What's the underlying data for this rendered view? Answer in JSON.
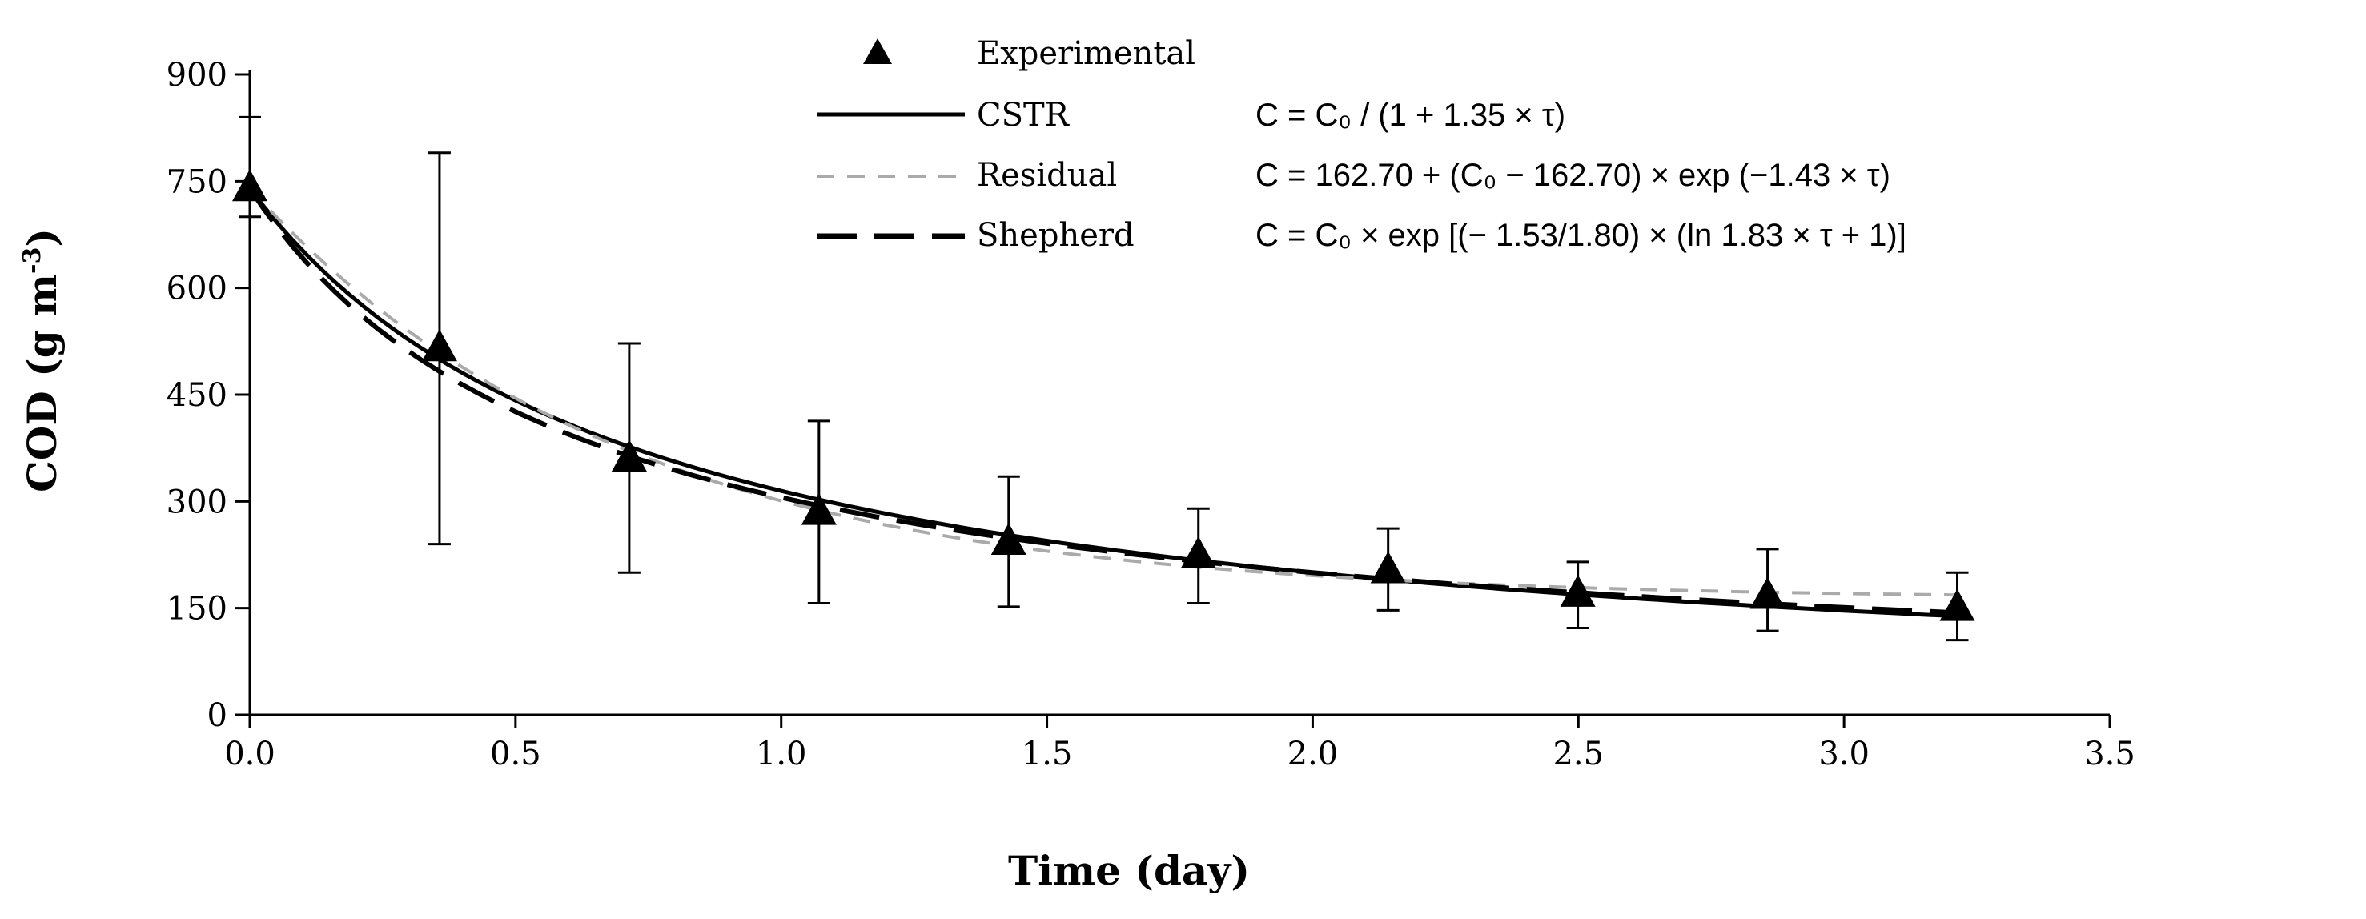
{
  "chart_data": {
    "type": "line",
    "title": "",
    "xlabel": "Time (day)",
    "ylabel": {
      "main": "COD (g m",
      "sup": "-3",
      "close": ")"
    },
    "xlim": [
      0,
      3.5
    ],
    "ylim": [
      0,
      900
    ],
    "xticks": [
      0,
      0.5,
      1.0,
      1.5,
      2.0,
      2.5,
      3.0,
      3.5
    ],
    "xtick_labels": [
      "0.0",
      "0.5",
      "1.0",
      "1.5",
      "2.0",
      "2.5",
      "3.0",
      "3.5"
    ],
    "yticks": [
      0,
      150,
      300,
      450,
      600,
      750,
      900
    ],
    "ytick_labels": [
      "0",
      "150",
      "300",
      "450",
      "600",
      "750",
      "900"
    ],
    "experimental": {
      "name": "Experimental",
      "x": [
        0.0,
        0.357,
        0.714,
        1.071,
        1.428,
        1.785,
        2.142,
        2.499,
        2.856,
        3.213
      ],
      "y": [
        740,
        515,
        360,
        285,
        243,
        224,
        203,
        170,
        167,
        150
      ],
      "err_low": [
        700,
        240,
        200,
        157,
        152,
        157,
        147,
        122,
        118,
        105
      ],
      "err_high": [
        840,
        790,
        522,
        413,
        335,
        290,
        262,
        215,
        233,
        200
      ]
    },
    "series": [
      {
        "name": "CSTR",
        "style": "solid",
        "color": "#000000",
        "equation": "C = C₀ / (1 + 1.35 × τ)"
      },
      {
        "name": "Residual",
        "style": "short-dash",
        "color": "#aaaaaa",
        "equation": "C = 162.70 + (C₀ − 162.70) × exp (−1.43 × τ)"
      },
      {
        "name": "Shepherd",
        "style": "long-dash",
        "color": "#000000",
        "equation": "C = C₀ × exp [(− 1.53/1.80) × (ln 1.83 × τ + 1)]"
      }
    ],
    "model": {
      "C0": 740,
      "k_cstr": 1.35,
      "residual_c": 162.7,
      "k_residual": 1.43,
      "shepherd_a": 1.53,
      "shepherd_b": 1.8,
      "shepherd_c": 1.83
    },
    "legend_position": "top-center"
  }
}
